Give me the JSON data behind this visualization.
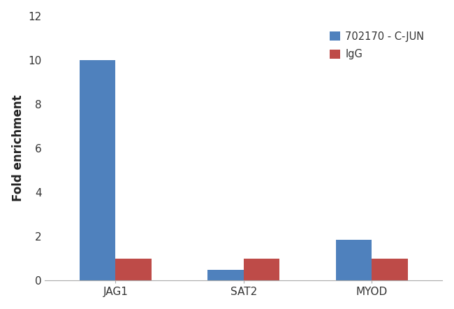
{
  "categories": [
    "JAG1",
    "SAT2",
    "MYOD"
  ],
  "series": [
    {
      "label": "702170 - C-JUN",
      "color": "#4F81BD",
      "values": [
        10.0,
        0.5,
        1.85
      ]
    },
    {
      "label": "IgG",
      "color": "#BE4B48",
      "values": [
        1.0,
        1.0,
        1.0
      ]
    }
  ],
  "ylabel": "Fold enrichment",
  "ylim": [
    0,
    12
  ],
  "yticks": [
    0,
    2,
    4,
    6,
    8,
    10,
    12
  ],
  "bar_width": 0.28,
  "group_positions": [
    0.22,
    0.5,
    0.78
  ],
  "legend_loc": "upper right",
  "background_color": "#ffffff",
  "label_fontsize": 12,
  "tick_fontsize": 11,
  "legend_fontsize": 10.5
}
